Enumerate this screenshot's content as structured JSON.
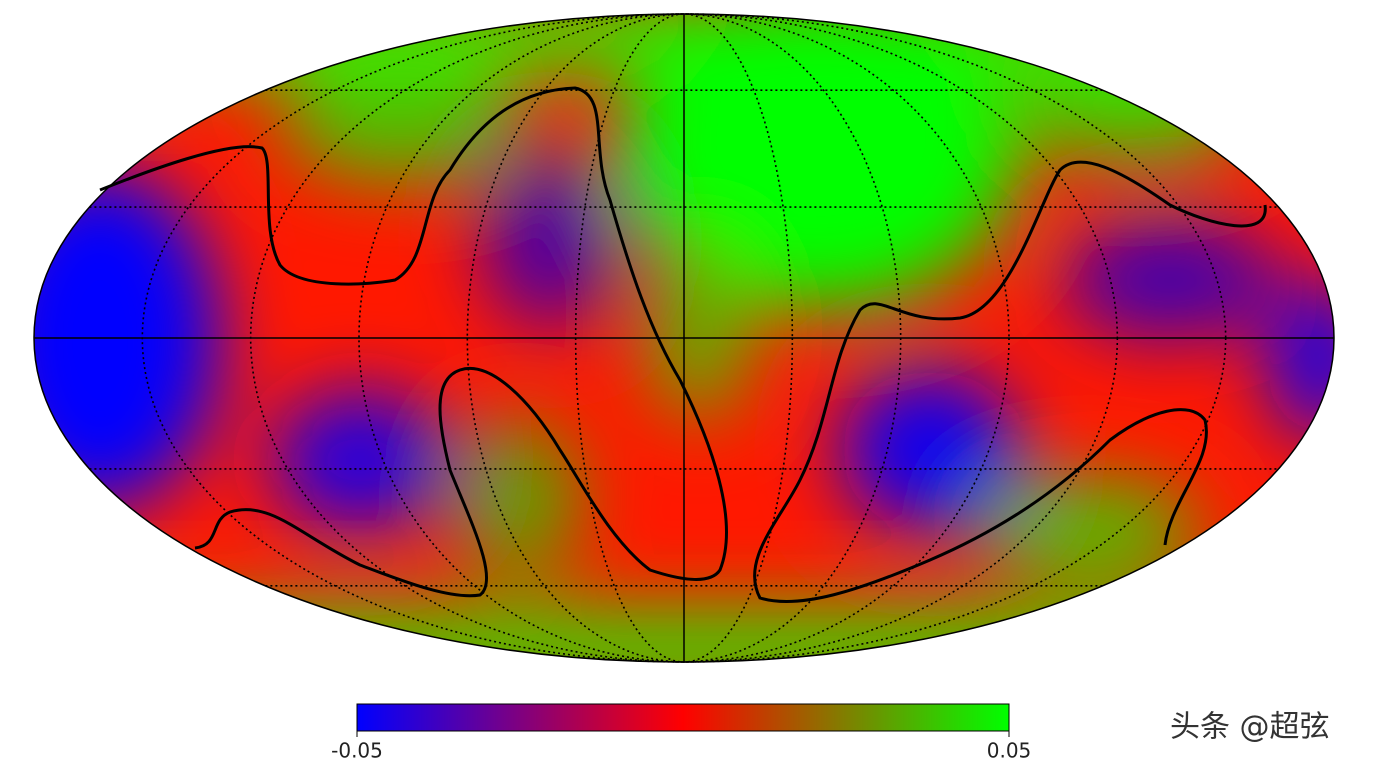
{
  "chart_data": {
    "type": "mollweide-map",
    "colorbar": {
      "clim": [
        -0.05,
        0.05
      ],
      "ticks": [
        -0.05,
        0.05
      ],
      "colors": [
        "#0000ff",
        "#ff0000",
        "#00ff00"
      ]
    },
    "graticule": true,
    "watermark": "头条 @超弦"
  }
}
